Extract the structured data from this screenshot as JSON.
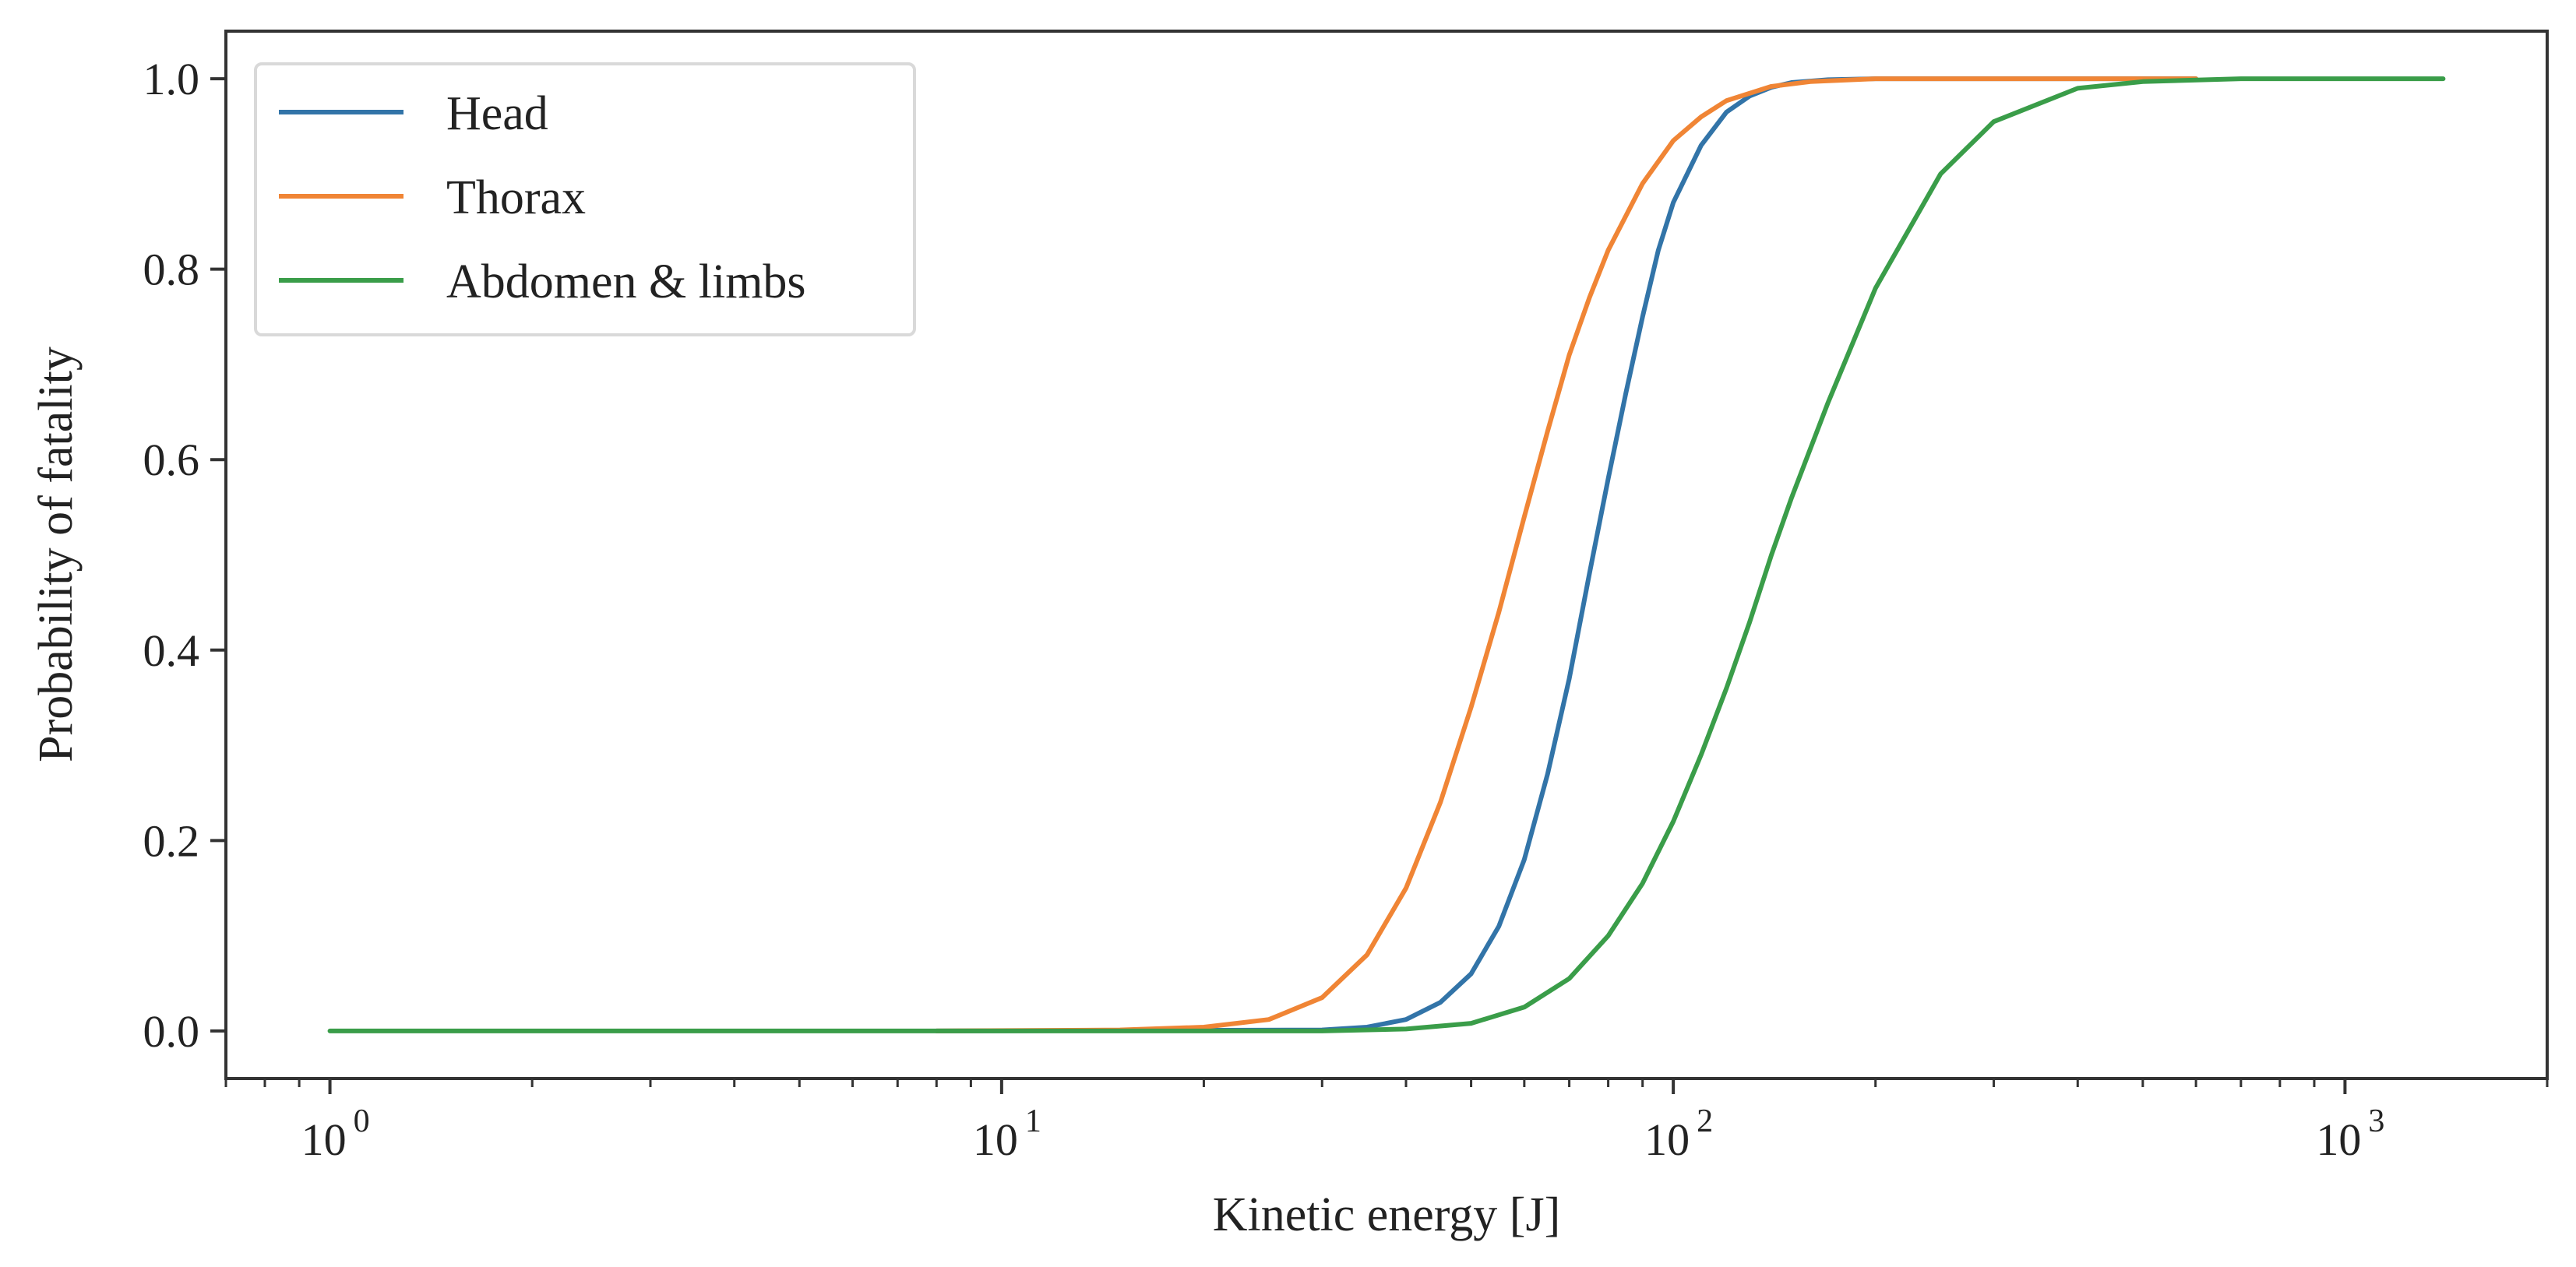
{
  "chart_data": {
    "type": "line",
    "title": "",
    "xlabel": "Kinetic energy [J]",
    "ylabel": "Probability of fatality",
    "xscale": "log",
    "xlim": [
      0.7,
      2000
    ],
    "ylim": [
      -0.05,
      1.05
    ],
    "x_ticks": [
      {
        "value": 1,
        "base": "10",
        "exp": "0"
      },
      {
        "value": 10,
        "base": "10",
        "exp": "1"
      },
      {
        "value": 100,
        "base": "10",
        "exp": "2"
      },
      {
        "value": 1000,
        "base": "10",
        "exp": "3"
      }
    ],
    "y_ticks": [
      {
        "value": 0.0,
        "label": "0.0"
      },
      {
        "value": 0.2,
        "label": "0.2"
      },
      {
        "value": 0.4,
        "label": "0.4"
      },
      {
        "value": 0.6,
        "label": "0.6"
      },
      {
        "value": 0.8,
        "label": "0.8"
      },
      {
        "value": 1.0,
        "label": "1.0"
      }
    ],
    "legend": {
      "placement": "top-left"
    },
    "series": [
      {
        "name": "Head",
        "color": "#3274a8",
        "x": [
          8,
          30,
          35,
          40,
          45,
          50,
          55,
          60,
          65,
          70,
          75,
          80,
          85,
          90,
          95,
          100,
          110,
          120,
          130,
          140,
          150,
          170,
          200,
          250,
          400,
          600
        ],
        "y": [
          0.0,
          0.001,
          0.004,
          0.012,
          0.03,
          0.06,
          0.11,
          0.18,
          0.27,
          0.37,
          0.48,
          0.58,
          0.67,
          0.75,
          0.82,
          0.87,
          0.93,
          0.965,
          0.982,
          0.991,
          0.996,
          0.999,
          1.0,
          1.0,
          1.0,
          1.0
        ]
      },
      {
        "name": "Thorax",
        "color": "#f08535",
        "x": [
          8,
          15,
          20,
          25,
          30,
          35,
          40,
          45,
          50,
          55,
          60,
          65,
          70,
          75,
          80,
          90,
          100,
          110,
          120,
          140,
          160,
          200,
          250,
          400,
          600
        ],
        "y": [
          0.0,
          0.001,
          0.004,
          0.012,
          0.035,
          0.08,
          0.15,
          0.24,
          0.34,
          0.44,
          0.54,
          0.63,
          0.71,
          0.77,
          0.82,
          0.89,
          0.935,
          0.96,
          0.977,
          0.992,
          0.997,
          1.0,
          1.0,
          1.0,
          1.0
        ]
      },
      {
        "name": "Abdomen & limbs",
        "color": "#3a9d49",
        "x": [
          1,
          3,
          10,
          30,
          40,
          50,
          60,
          70,
          80,
          90,
          100,
          110,
          120,
          130,
          140,
          150,
          170,
          200,
          250,
          300,
          400,
          500,
          700,
          1000,
          1400
        ],
        "y": [
          0.0,
          0.0,
          0.0,
          0.0,
          0.002,
          0.008,
          0.025,
          0.055,
          0.1,
          0.155,
          0.22,
          0.29,
          0.36,
          0.43,
          0.5,
          0.56,
          0.66,
          0.78,
          0.9,
          0.955,
          0.99,
          0.997,
          1.0,
          1.0,
          1.0
        ]
      }
    ]
  }
}
